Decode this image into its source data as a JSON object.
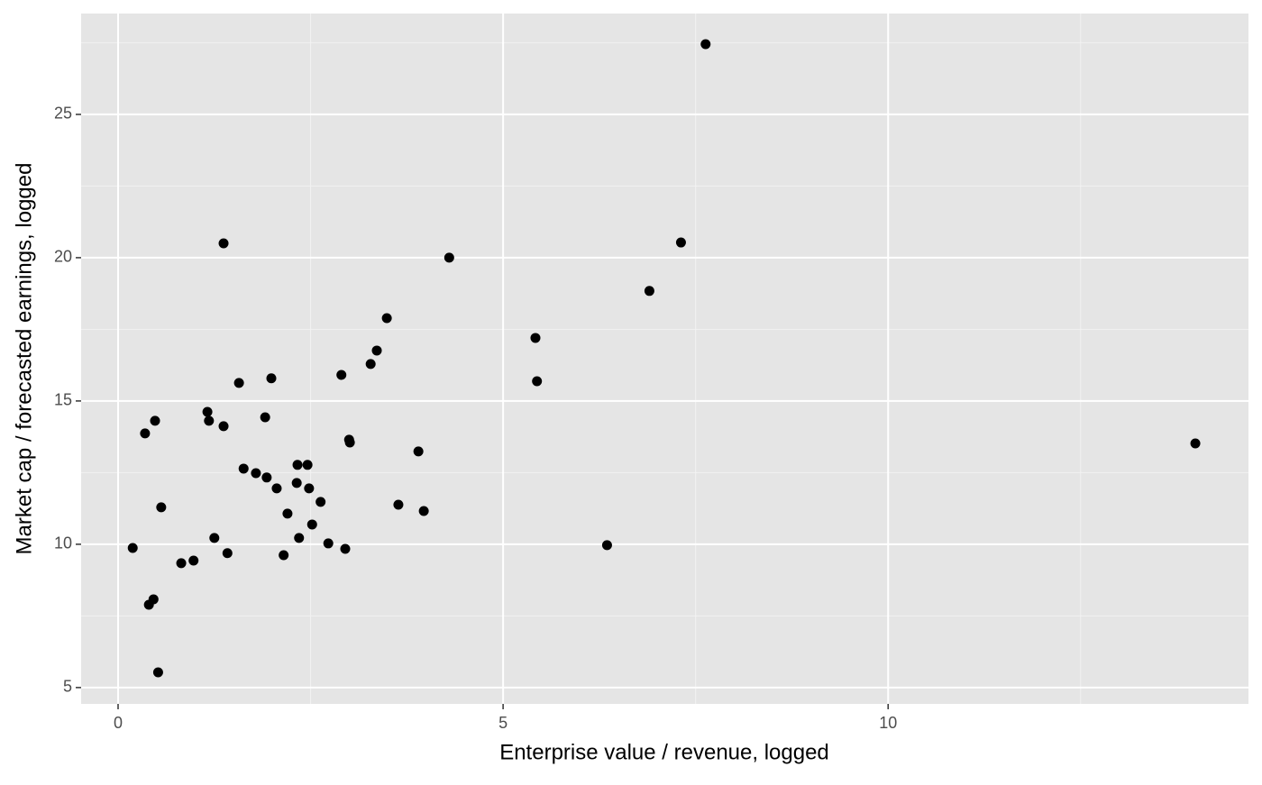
{
  "chart_data": {
    "type": "scatter",
    "xlabel": "Enterprise value / revenue, logged",
    "ylabel": "Market cap / forecasted earnings, logged",
    "xlim": [
      -0.48,
      14.68
    ],
    "ylim": [
      4.43,
      28.52
    ],
    "xticks": [
      0,
      5,
      10
    ],
    "yticks": [
      5,
      10,
      15,
      20,
      25
    ],
    "x_minor_breaks": [
      2.5,
      7.5,
      12.5
    ],
    "y_minor_breaks": [
      7.5,
      12.5,
      17.5,
      22.5,
      27.5
    ],
    "grid": true,
    "color": "#000000",
    "x": [
      7.63,
      1.37,
      7.31,
      4.3,
      6.9,
      3.49,
      5.42,
      3.36,
      3.28,
      2.9,
      1.99,
      1.57,
      5.44,
      1.16,
      0.48,
      1.18,
      1.91,
      1.37,
      0.35,
      3.0,
      3.01,
      13.99,
      3.9,
      1.63,
      2.33,
      2.46,
      1.79,
      1.93,
      2.32,
      2.06,
      2.48,
      2.63,
      3.64,
      0.56,
      3.97,
      2.2,
      2.52,
      1.25,
      2.35,
      2.73,
      6.35,
      2.95,
      0.19,
      1.42,
      2.15,
      0.98,
      0.82,
      0.46,
      0.4,
      0.52
    ],
    "y": [
      27.45,
      20.5,
      20.53,
      20.0,
      18.84,
      17.89,
      17.2,
      16.76,
      16.29,
      15.91,
      15.79,
      15.63,
      15.69,
      14.62,
      14.31,
      14.31,
      14.43,
      14.12,
      13.87,
      13.65,
      13.55,
      13.52,
      13.24,
      12.64,
      12.77,
      12.77,
      12.48,
      12.33,
      12.14,
      11.95,
      11.95,
      11.48,
      11.38,
      11.29,
      11.16,
      11.07,
      10.69,
      10.22,
      10.22,
      10.03,
      9.97,
      9.84,
      9.87,
      9.69,
      9.62,
      9.43,
      9.34,
      8.08,
      7.89,
      5.53
    ]
  }
}
